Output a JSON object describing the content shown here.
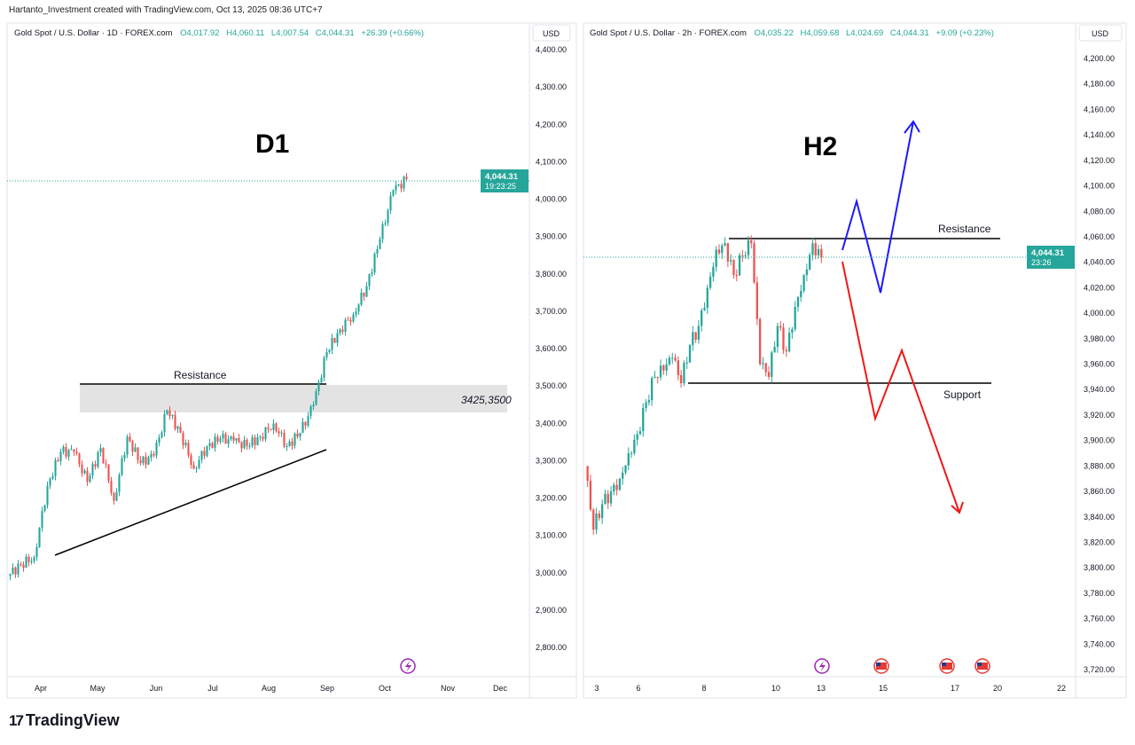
{
  "header": "Hartanto_Investment created with TradingView.com, Oct 13, 2025 08:36 UTC+7",
  "brand": "TradingView",
  "colors": {
    "up": "#26a69a",
    "down": "#ef5350",
    "price_line": "#26a69a",
    "blue_arrow": "#1a1aff",
    "red_arrow": "#f01818",
    "sr_zone": "#e3e3e3"
  },
  "chart_data": [
    {
      "type": "candlestick",
      "symbol": "Gold Spot / U.S. Dollar · 1D · FOREX.com",
      "ohlc": {
        "o": "O4,017.92",
        "h": "H4,060.11",
        "l": "L4,007.54",
        "c": "C4,044.31",
        "chg": "+26.39 (+0.66%)"
      },
      "currency": "USD",
      "last_price": "4,044.31",
      "countdown": "19:23:25",
      "title": "D1",
      "ylim": [
        2760,
        4420
      ],
      "y_ticks": [
        "4,400.00",
        "4,300.00",
        "4,200.00",
        "4,100.00",
        "4,000.00",
        "3,900.00",
        "3,800.00",
        "3,700.00",
        "3,600.00",
        "3,500.00",
        "3,400.00",
        "3,300.00",
        "3,200.00",
        "3,100.00",
        "3,000.00",
        "2,900.00",
        "2,800.00"
      ],
      "x_ticks": [
        "Apr",
        "May",
        "Jun",
        "Jul",
        "Aug",
        "Sep",
        "Oct",
        "Nov",
        "Dec"
      ],
      "weekly_closes": [
        2990,
        3020,
        3040,
        3230,
        3320,
        3320,
        3240,
        3330,
        3190,
        3360,
        3290,
        3310,
        3430,
        3370,
        3275,
        3335,
        3355,
        3350,
        3335,
        3360,
        3395,
        3335,
        3370,
        3445,
        3585,
        3645,
        3685,
        3760,
        3885,
        4015,
        4044
      ],
      "annotations": {
        "resistance": "Resistance",
        "zone": [
          3425,
          3500
        ],
        "resistance_price": 3500,
        "trendline": [
          3100,
          3380
        ]
      }
    },
    {
      "type": "candlestick",
      "symbol": "Gold Spot / U.S. Dollar · 2h · FOREX.com",
      "ohlc": {
        "o": "O4,035.22",
        "h": "H4,059.68",
        "l": "L4,024.69",
        "c": "C4,044.31",
        "chg": "+9.09 (+0.23%)"
      },
      "currency": "USD",
      "last_price": "4,044.31",
      "countdown": "23:26",
      "title": "H2",
      "ylim": [
        3712,
        4214
      ],
      "y_ticks": [
        "4,200.00",
        "4,180.00",
        "4,160.00",
        "4,140.00",
        "4,120.00",
        "4,100.00",
        "4,080.00",
        "4,060.00",
        "4,040.00",
        "4,020.00",
        "4,000.00",
        "3,980.00",
        "3,960.00",
        "3,940.00",
        "3,920.00",
        "3,900.00",
        "3,880.00",
        "3,860.00",
        "3,840.00",
        "3,820.00",
        "3,800.00",
        "3,780.00",
        "3,760.00",
        "3,740.00",
        "3,720.00"
      ],
      "x_ticks": [
        "3",
        "6",
        "8",
        "10",
        "13",
        "15",
        "17",
        "20",
        "22"
      ],
      "closes": [
        3880,
        3830,
        3850,
        3860,
        3870,
        3890,
        3905,
        3930,
        3950,
        3955,
        3965,
        3945,
        3975,
        3990,
        4020,
        4050,
        4055,
        4030,
        4045,
        4055,
        3960,
        3950,
        3990,
        3970,
        4005,
        4030,
        4055,
        4044
      ],
      "annotations": {
        "resistance": "Resistance",
        "support": "Support",
        "resistance_price": 4058,
        "support_price": 3945
      }
    }
  ]
}
